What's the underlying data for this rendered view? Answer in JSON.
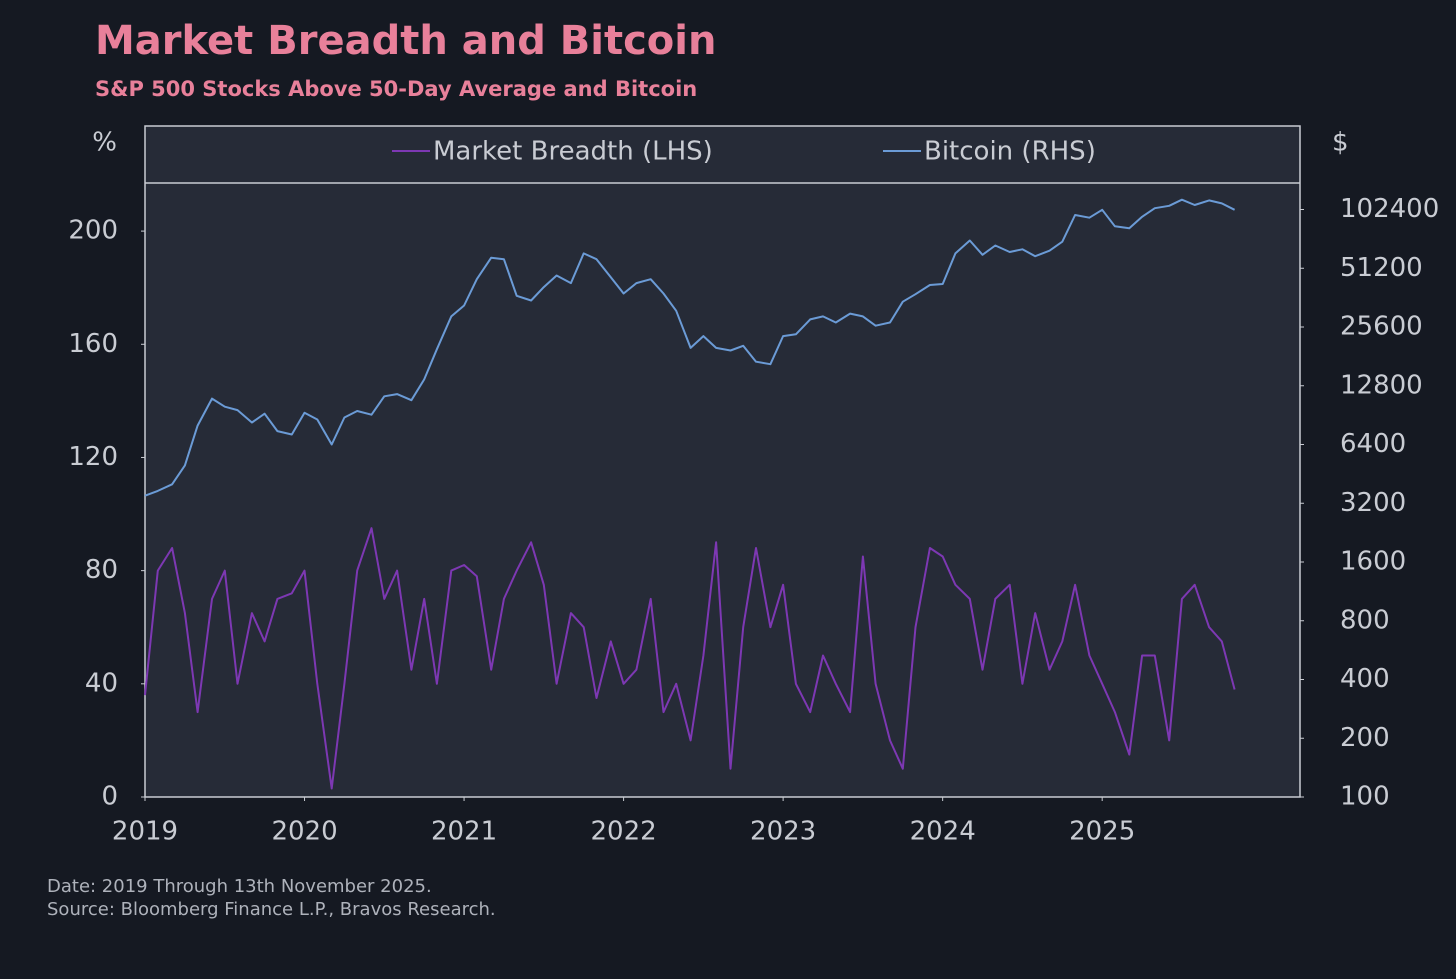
{
  "chart_data": {
    "type": "line",
    "title": "Market Breadth and Bitcoin",
    "subtitle": "S&P 500 Stocks Above 50-Day Average and Bitcoin",
    "y_label": "%",
    "y2_label": "$",
    "footnotes": [
      "Date: 2019 Through 13th November 2025.",
      "Source: Bloomberg Finance L.P., Bravos Research."
    ],
    "x": [
      2019.0,
      2019.08,
      2019.17,
      2019.25,
      2019.33,
      2019.42,
      2019.5,
      2019.58,
      2019.67,
      2019.75,
      2019.83,
      2019.92,
      2020.0,
      2020.08,
      2020.17,
      2020.25,
      2020.33,
      2020.42,
      2020.5,
      2020.58,
      2020.67,
      2020.75,
      2020.83,
      2020.92,
      2021.0,
      2021.08,
      2021.17,
      2021.25,
      2021.33,
      2021.42,
      2021.5,
      2021.58,
      2021.67,
      2021.75,
      2021.83,
      2021.92,
      2022.0,
      2022.08,
      2022.17,
      2022.25,
      2022.33,
      2022.42,
      2022.5,
      2022.58,
      2022.67,
      2022.75,
      2022.83,
      2022.92,
      2023.0,
      2023.08,
      2023.17,
      2023.25,
      2023.33,
      2023.42,
      2023.5,
      2023.58,
      2023.67,
      2023.75,
      2023.83,
      2023.92,
      2024.0,
      2024.08,
      2024.17,
      2024.25,
      2024.33,
      2024.42,
      2024.5,
      2024.58,
      2024.67,
      2024.75,
      2024.83,
      2024.92,
      2025.0,
      2025.08,
      2025.17,
      2025.25,
      2025.33,
      2025.42,
      2025.5,
      2025.58,
      2025.67,
      2025.75,
      2025.83
    ],
    "series": [
      {
        "name": "Market Breadth (LHS)",
        "color": "#7d38b3",
        "values": [
          36,
          80,
          88,
          65,
          30,
          70,
          80,
          40,
          65,
          55,
          70,
          72,
          80,
          40,
          3,
          40,
          80,
          95,
          70,
          80,
          45,
          70,
          40,
          80,
          82,
          78,
          45,
          70,
          80,
          90,
          75,
          40,
          65,
          60,
          35,
          55,
          40,
          45,
          70,
          30,
          40,
          20,
          50,
          90,
          10,
          60,
          88,
          60,
          75,
          40,
          30,
          50,
          40,
          30,
          85,
          40,
          20,
          10,
          60,
          88,
          85,
          75,
          70,
          45,
          70,
          75,
          40,
          65,
          45,
          55,
          75,
          50,
          40,
          30,
          15,
          50,
          50,
          20,
          70,
          75,
          60,
          55,
          38
        ]
      },
      {
        "name": "Bitcoin (RHS)",
        "color": "#6b9bd6",
        "axis": "y2",
        "values": [
          3500,
          3700,
          4000,
          5000,
          8000,
          11000,
          10000,
          9600,
          8300,
          9200,
          7500,
          7200,
          9300,
          8600,
          6400,
          8800,
          9500,
          9100,
          11300,
          11600,
          10800,
          13800,
          19700,
          29000,
          33000,
          45000,
          58000,
          57000,
          37000,
          35000,
          41000,
          47000,
          43000,
          61000,
          57000,
          46000,
          38000,
          43000,
          45000,
          38000,
          31000,
          20000,
          23000,
          20000,
          19400,
          20500,
          17000,
          16500,
          23000,
          23500,
          28000,
          29000,
          27000,
          30000,
          29000,
          26000,
          27000,
          34500,
          37700,
          42000,
          42500,
          61000,
          71000,
          60000,
          67000,
          62000,
          64000,
          59000,
          63000,
          70000,
          96000,
          93000,
          102000,
          84000,
          82000,
          94000,
          104000,
          107000,
          115000,
          108000,
          114000,
          110000,
          102000
        ]
      }
    ],
    "xlim": [
      2019,
      2026.24
    ],
    "xticks": [
      2019,
      2020,
      2021,
      2022,
      2023,
      2024,
      2025
    ],
    "ylim": [
      0,
      217
    ],
    "yticks": [
      0,
      40,
      80,
      120,
      160,
      200
    ],
    "y2lim": [
      100,
      140000
    ],
    "y2ticks": [
      100,
      200,
      400,
      800,
      1600,
      3200,
      6400,
      12800,
      25600,
      51200,
      102400
    ],
    "y2scale": "log",
    "grid": false,
    "legend": "top"
  }
}
